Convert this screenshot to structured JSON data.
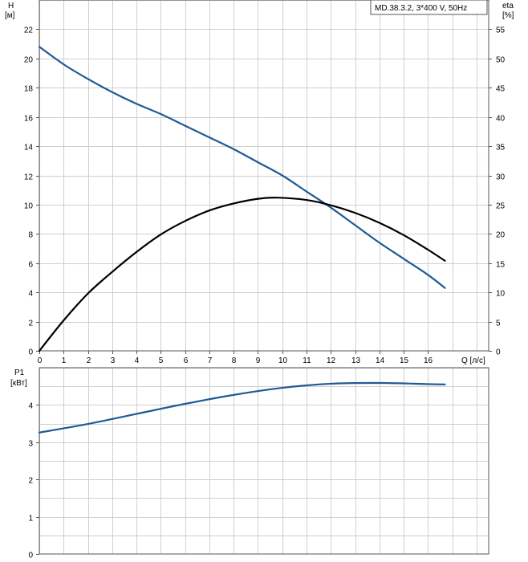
{
  "legend": "MD.38.3.2, 3*400 V, 50Hz",
  "chart_data": [
    {
      "type": "line",
      "x_label": "Q [л/с]",
      "x_ticks": [
        0,
        1,
        2,
        3,
        4,
        5,
        6,
        7,
        8,
        9,
        10,
        11,
        12,
        13,
        14,
        15,
        16
      ],
      "xlim": [
        0,
        18.5
      ],
      "y_label_line1": "H",
      "y_label_line2": "[м]",
      "ylim": [
        0,
        24
      ],
      "y_ticks": [
        0,
        2,
        4,
        6,
        8,
        10,
        12,
        14,
        16,
        18,
        20,
        22
      ],
      "y2_label_line1": "eta",
      "y2_label_line2": "[%]",
      "y2lim": [
        0,
        60
      ],
      "y2_ticks": [
        0,
        5,
        10,
        15,
        20,
        25,
        30,
        35,
        40,
        45,
        50,
        55
      ],
      "grid": true,
      "series": [
        {
          "axis": "left",
          "color": "#1f5a96",
          "x": [
            0,
            1,
            2,
            3,
            4,
            5,
            6,
            7,
            8,
            9,
            10,
            11,
            12,
            13,
            14,
            15,
            16,
            16.7
          ],
          "y": [
            20.8,
            19.6,
            18.6,
            17.7,
            16.9,
            16.2,
            15.4,
            14.6,
            13.8,
            12.9,
            12.0,
            10.9,
            9.8,
            8.6,
            7.4,
            6.3,
            5.2,
            4.3
          ]
        },
        {
          "axis": "right",
          "color": "#000000",
          "x": [
            0,
            1,
            2,
            3,
            4,
            5,
            6,
            7,
            8,
            9,
            9.8,
            11,
            12,
            13,
            14,
            15,
            16,
            16.7
          ],
          "y": [
            0,
            5.2,
            9.8,
            13.5,
            16.9,
            19.9,
            22.2,
            24.0,
            25.2,
            26.0,
            26.2,
            25.8,
            24.9,
            23.6,
            21.9,
            19.8,
            17.3,
            15.4
          ]
        }
      ]
    },
    {
      "type": "line",
      "y_label_line1": "P1",
      "y_label_line2": "[кВт]",
      "ylim": [
        0,
        5
      ],
      "y_ticks": [
        0,
        1,
        2,
        3,
        4
      ],
      "xlim": [
        0,
        18.5
      ],
      "grid": true,
      "series": [
        {
          "color": "#1f5a96",
          "x": [
            0,
            2,
            4,
            6,
            8,
            10,
            12,
            14,
            16,
            16.7
          ],
          "y": [
            3.26,
            3.49,
            3.76,
            4.03,
            4.27,
            4.46,
            4.57,
            4.59,
            4.56,
            4.55
          ]
        }
      ]
    }
  ]
}
